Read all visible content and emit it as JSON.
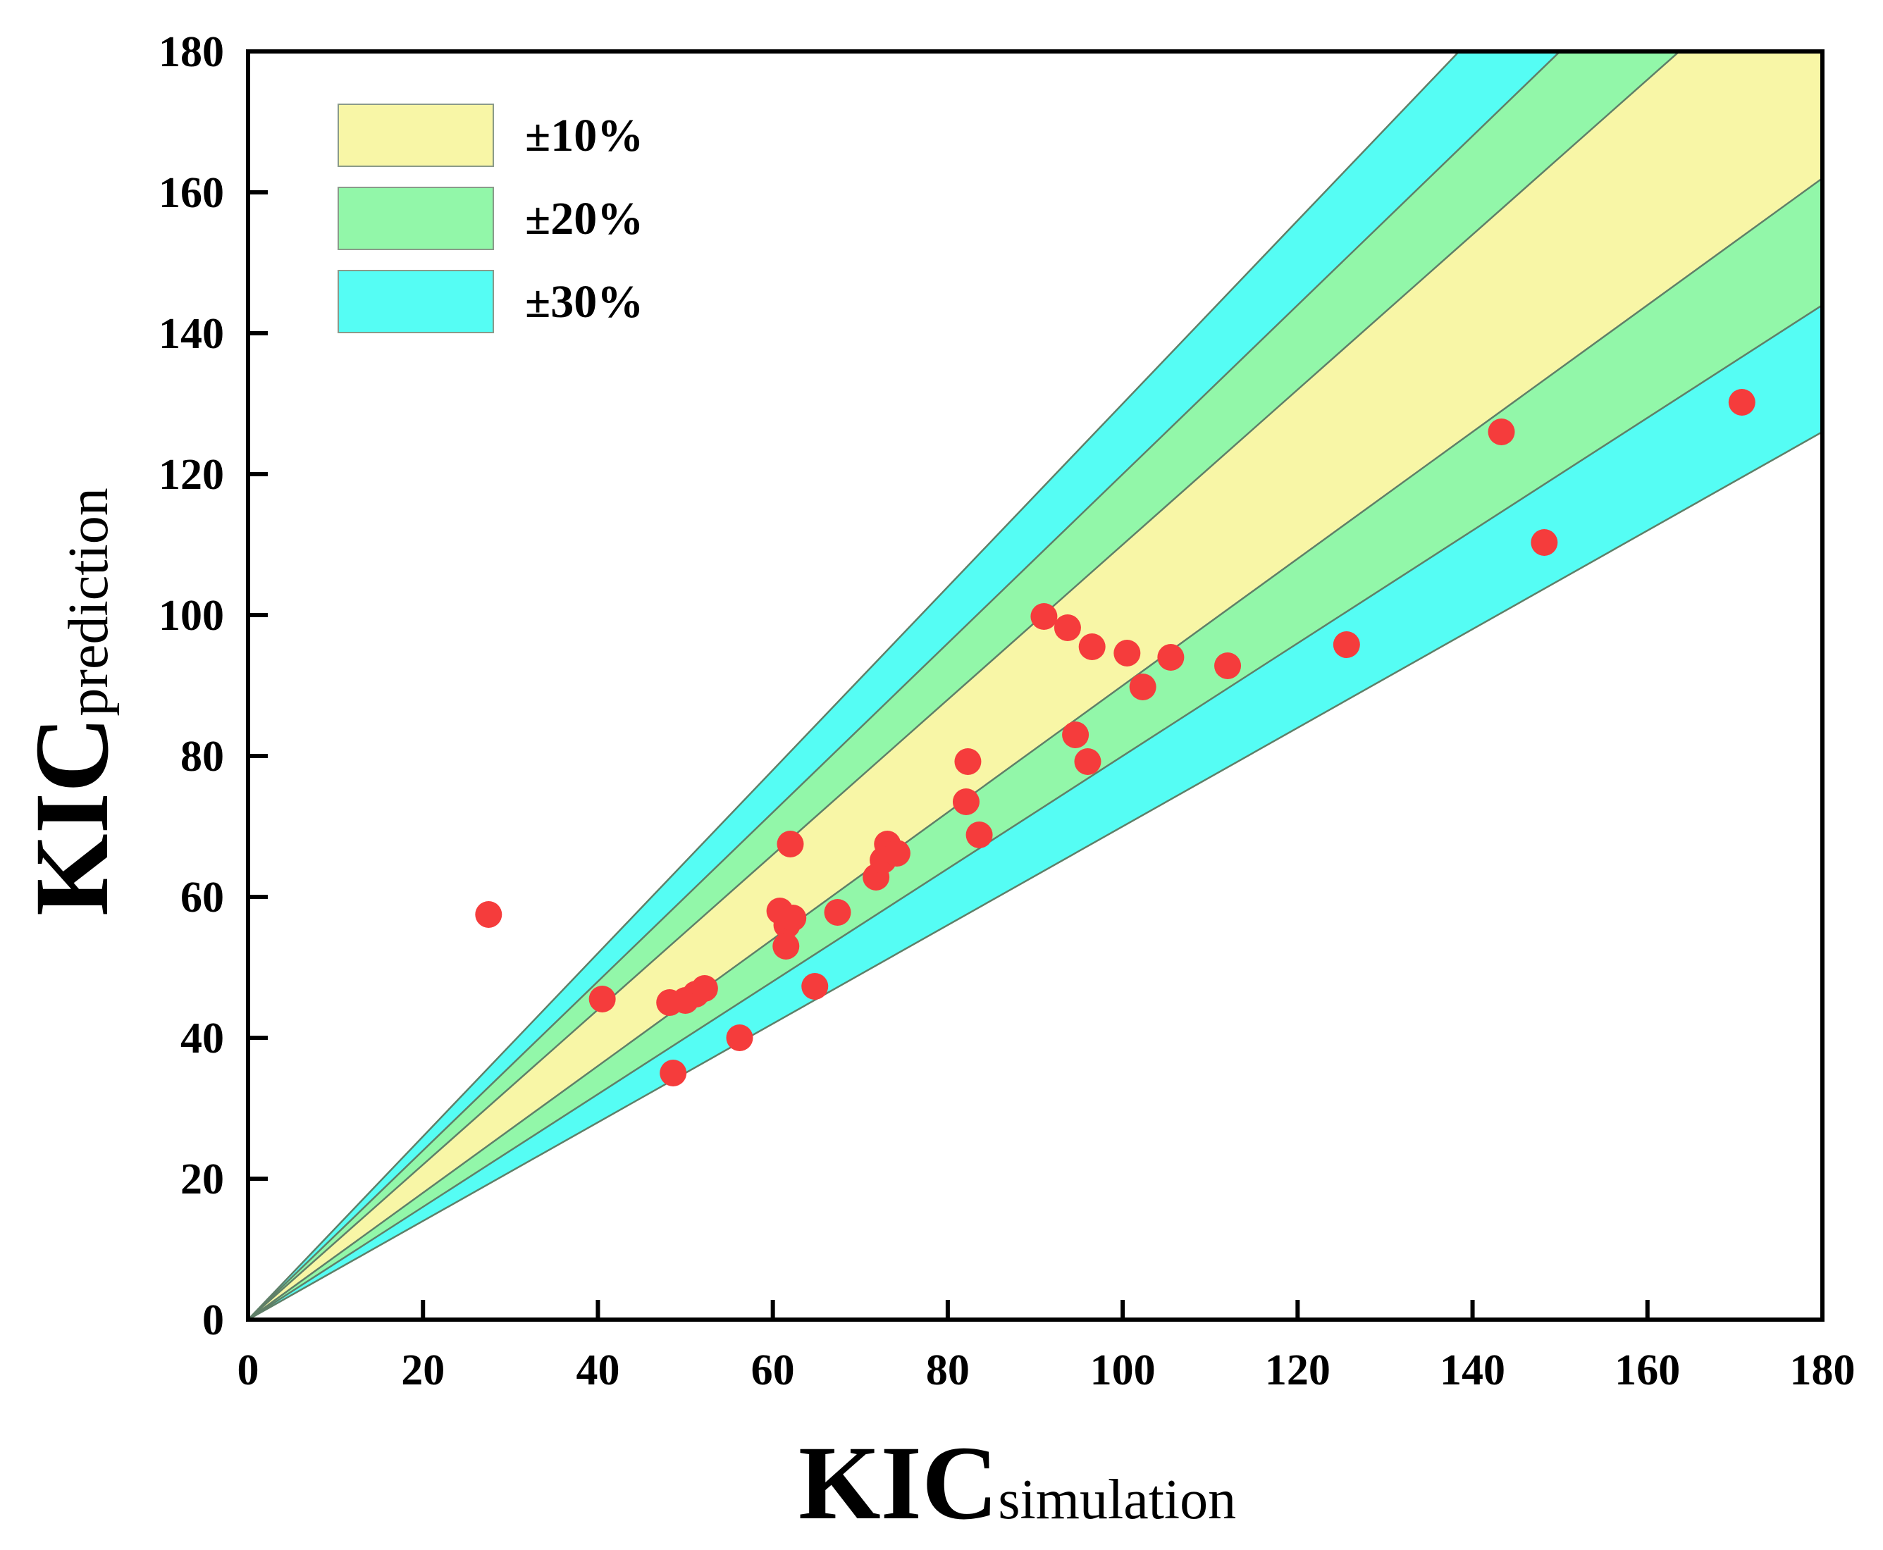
{
  "chart_data": {
    "type": "scatter",
    "title": "",
    "xlabel": {
      "main": "KIC",
      "sub": "simulation"
    },
    "ylabel": {
      "main": "KIC",
      "sub": "prediction"
    },
    "xlim": [
      0,
      180
    ],
    "ylim": [
      0,
      180
    ],
    "xticks": [
      "0",
      "20",
      "40",
      "60",
      "80",
      "100",
      "120",
      "140",
      "160",
      "180"
    ],
    "yticks": [
      "0",
      "20",
      "40",
      "60",
      "80",
      "100",
      "120",
      "140",
      "160",
      "180"
    ],
    "bands": [
      {
        "name": "±30%",
        "factor": 0.3,
        "color": "#55fdf4"
      },
      {
        "name": "±20%",
        "factor": 0.2,
        "color": "#92f7a9"
      },
      {
        "name": "±10%",
        "factor": 0.1,
        "color": "#f8f6a6"
      }
    ],
    "legend": {
      "position": "top-left",
      "entries": [
        {
          "label": "±10%",
          "color": "#f8f6a6"
        },
        {
          "label": "±20%",
          "color": "#92f7a9"
        },
        {
          "label": "±30%",
          "color": "#55fdf4"
        }
      ]
    },
    "marker_color": "#f53c3c",
    "points": [
      {
        "x": 27.5,
        "y": 57.5
      },
      {
        "x": 40.5,
        "y": 45.5
      },
      {
        "x": 48.2,
        "y": 45.0
      },
      {
        "x": 50.0,
        "y": 45.3
      },
      {
        "x": 51.2,
        "y": 46.2
      },
      {
        "x": 52.2,
        "y": 47.0
      },
      {
        "x": 48.6,
        "y": 35.0
      },
      {
        "x": 56.2,
        "y": 40.0
      },
      {
        "x": 60.8,
        "y": 58.0
      },
      {
        "x": 61.6,
        "y": 56.0
      },
      {
        "x": 62.3,
        "y": 57.0
      },
      {
        "x": 61.5,
        "y": 53.0
      },
      {
        "x": 62.0,
        "y": 67.5
      },
      {
        "x": 64.8,
        "y": 47.3
      },
      {
        "x": 67.4,
        "y": 57.8
      },
      {
        "x": 71.8,
        "y": 62.8
      },
      {
        "x": 72.6,
        "y": 65.2
      },
      {
        "x": 73.1,
        "y": 67.5
      },
      {
        "x": 74.2,
        "y": 66.2
      },
      {
        "x": 82.1,
        "y": 73.5
      },
      {
        "x": 82.3,
        "y": 79.2
      },
      {
        "x": 83.6,
        "y": 68.8
      },
      {
        "x": 91.0,
        "y": 99.8
      },
      {
        "x": 93.7,
        "y": 98.2
      },
      {
        "x": 96.5,
        "y": 95.5
      },
      {
        "x": 94.6,
        "y": 83.0
      },
      {
        "x": 96.0,
        "y": 79.2
      },
      {
        "x": 100.5,
        "y": 94.6
      },
      {
        "x": 102.3,
        "y": 89.8
      },
      {
        "x": 105.5,
        "y": 94.0
      },
      {
        "x": 112.0,
        "y": 92.8
      },
      {
        "x": 125.6,
        "y": 95.8
      },
      {
        "x": 143.3,
        "y": 126.0
      },
      {
        "x": 148.2,
        "y": 110.3
      },
      {
        "x": 170.8,
        "y": 130.2
      }
    ]
  }
}
